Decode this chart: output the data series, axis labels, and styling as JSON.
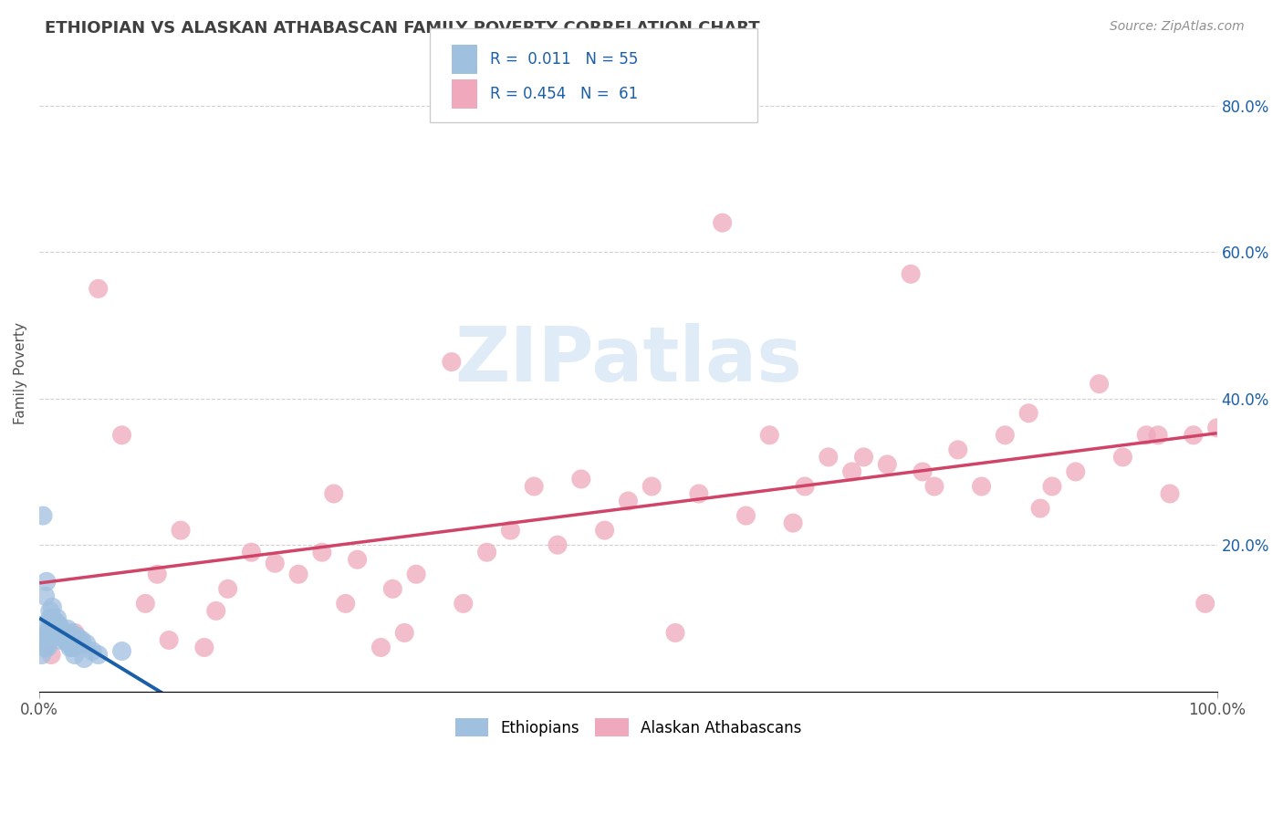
{
  "title": "ETHIOPIAN VS ALASKAN ATHABASCAN FAMILY POVERTY CORRELATION CHART",
  "source": "Source: ZipAtlas.com",
  "ylabel": "Family Poverty",
  "background_color": "#ffffff",
  "grid_color": "#cccccc",
  "watermark_text": "ZIPatlas",
  "blue_scatter_color": "#a0c0e0",
  "pink_scatter_color": "#f0a8bc",
  "blue_line_solid_color": "#1a5fa8",
  "blue_line_dash_color": "#90c4e0",
  "pink_line_color": "#d04468",
  "title_color": "#404040",
  "source_color": "#909090",
  "legend_text_color": "#1a5fa8",
  "right_tick_color": "#1a5fa8",
  "ethiopian_R": "0.011",
  "ethiopian_N": "55",
  "athabascan_R": "0.454",
  "athabascan_N": "61",
  "legend_label_ethiopians": "Ethiopians",
  "legend_label_athabascans": "Alaskan Athabascans",
  "ethiopian_x": [
    0.001,
    0.002,
    0.003,
    0.004,
    0.004,
    0.005,
    0.005,
    0.006,
    0.006,
    0.007,
    0.007,
    0.008,
    0.008,
    0.009,
    0.009,
    0.01,
    0.01,
    0.011,
    0.011,
    0.012,
    0.012,
    0.013,
    0.013,
    0.014,
    0.014,
    0.015,
    0.015,
    0.016,
    0.016,
    0.017,
    0.017,
    0.018,
    0.018,
    0.019,
    0.019,
    0.02,
    0.02,
    0.021,
    0.022,
    0.023,
    0.024,
    0.025,
    0.026,
    0.027,
    0.028,
    0.029,
    0.03,
    0.032,
    0.034,
    0.036,
    0.038,
    0.04,
    0.045,
    0.05,
    0.07
  ],
  "ethiopian_y": [
    0.09,
    0.05,
    0.24,
    0.06,
    0.07,
    0.13,
    0.06,
    0.15,
    0.07,
    0.06,
    0.065,
    0.085,
    0.08,
    0.1,
    0.11,
    0.085,
    0.09,
    0.115,
    0.1,
    0.095,
    0.085,
    0.09,
    0.085,
    0.095,
    0.09,
    0.1,
    0.085,
    0.085,
    0.09,
    0.09,
    0.085,
    0.07,
    0.08,
    0.08,
    0.075,
    0.075,
    0.08,
    0.075,
    0.07,
    0.07,
    0.085,
    0.065,
    0.06,
    0.08,
    0.06,
    0.06,
    0.05,
    0.075,
    0.07,
    0.07,
    0.045,
    0.065,
    0.055,
    0.05,
    0.055
  ],
  "athabascan_x": [
    0.01,
    0.05,
    0.1,
    0.12,
    0.14,
    0.16,
    0.18,
    0.2,
    0.22,
    0.24,
    0.25,
    0.27,
    0.29,
    0.3,
    0.32,
    0.35,
    0.36,
    0.38,
    0.4,
    0.42,
    0.44,
    0.46,
    0.48,
    0.5,
    0.52,
    0.54,
    0.56,
    0.58,
    0.6,
    0.62,
    0.64,
    0.65,
    0.67,
    0.69,
    0.7,
    0.72,
    0.74,
    0.75,
    0.76,
    0.78,
    0.8,
    0.82,
    0.84,
    0.85,
    0.86,
    0.88,
    0.9,
    0.92,
    0.94,
    0.95,
    0.96,
    0.98,
    0.99,
    1.0,
    0.03,
    0.07,
    0.09,
    0.11,
    0.15,
    0.26,
    0.31
  ],
  "athabascan_y": [
    0.05,
    0.55,
    0.16,
    0.22,
    0.06,
    0.14,
    0.19,
    0.175,
    0.16,
    0.19,
    0.27,
    0.18,
    0.06,
    0.14,
    0.16,
    0.45,
    0.12,
    0.19,
    0.22,
    0.28,
    0.2,
    0.29,
    0.22,
    0.26,
    0.28,
    0.08,
    0.27,
    0.64,
    0.24,
    0.35,
    0.23,
    0.28,
    0.32,
    0.3,
    0.32,
    0.31,
    0.57,
    0.3,
    0.28,
    0.33,
    0.28,
    0.35,
    0.38,
    0.25,
    0.28,
    0.3,
    0.42,
    0.32,
    0.35,
    0.35,
    0.27,
    0.35,
    0.12,
    0.36,
    0.08,
    0.35,
    0.12,
    0.07,
    0.11,
    0.12,
    0.08
  ],
  "xlim": [
    0,
    1
  ],
  "ylim": [
    0,
    0.87
  ],
  "ytick_positions": [
    0.2,
    0.4,
    0.6,
    0.8
  ],
  "ytick_labels": [
    "20.0%",
    "40.0%",
    "60.0%",
    "80.0%"
  ],
  "xtick_positions": [
    0,
    1
  ],
  "xtick_labels": [
    "0.0%",
    "100.0%"
  ]
}
